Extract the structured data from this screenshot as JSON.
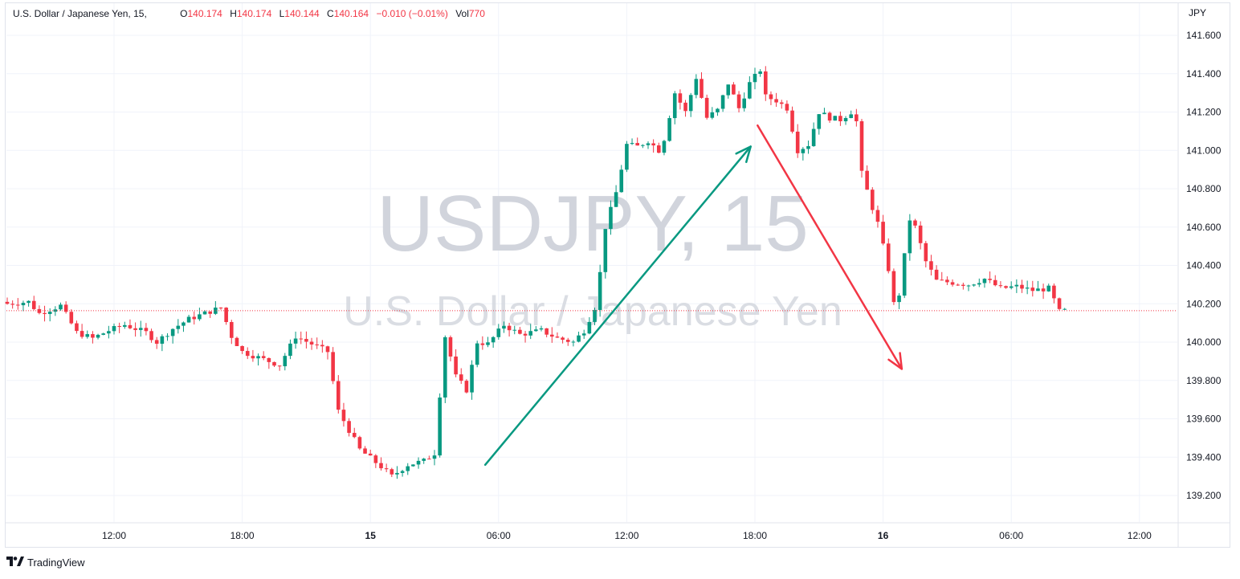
{
  "legend": {
    "symbol": "U.S. Dollar / Japanese Yen, 15,",
    "o_label": "O",
    "o_value": "140.174",
    "h_label": "H",
    "h_value": "140.174",
    "l_label": "L",
    "l_value": "140.144",
    "c_label": "C",
    "c_value": "140.164",
    "change": "−0.010 (−0.01%)",
    "vol_label": "Vol",
    "vol_value": "770"
  },
  "watermark": {
    "symbol": "USDJPY, 15",
    "name": "U.S. Dollar / Japanese Yen"
  },
  "branding": {
    "logo_icon": "tradingview-logo-icon",
    "name": "TradingView"
  },
  "colors": {
    "up": "#089981",
    "down": "#f23645",
    "grid": "#f0f3fa",
    "axis_text": "#131722",
    "last_price_line": "#f23645",
    "arrow_up": "#089981",
    "arrow_down": "#f23645",
    "watermark": "#d1d4dc"
  },
  "chart_data": {
    "type": "candlestick",
    "currency": "JPY",
    "last_price": 140.164,
    "ylim": [
      139.1,
      141.67
    ],
    "xlim": [
      0,
      198
    ],
    "y_ticks": [
      {
        "value": 141.6,
        "label": "141.600"
      },
      {
        "value": 141.4,
        "label": "141.400"
      },
      {
        "value": 141.2,
        "label": "141.200"
      },
      {
        "value": 141.0,
        "label": "141.000"
      },
      {
        "value": 140.8,
        "label": "140.800"
      },
      {
        "value": 140.6,
        "label": "140.600"
      },
      {
        "value": 140.4,
        "label": "140.400"
      },
      {
        "value": 140.2,
        "label": "140.200"
      },
      {
        "value": 140.0,
        "label": "140.000"
      },
      {
        "value": 139.8,
        "label": "139.800"
      },
      {
        "value": 139.6,
        "label": "139.600"
      },
      {
        "value": 139.4,
        "label": "139.400"
      },
      {
        "value": 139.2,
        "label": "139.200"
      }
    ],
    "x_ticks": [
      {
        "index": 20,
        "label": "12:00",
        "bold": false
      },
      {
        "index": 44,
        "label": "18:00",
        "bold": false
      },
      {
        "index": 68,
        "label": "15",
        "bold": true
      },
      {
        "index": 92,
        "label": "06:00",
        "bold": false
      },
      {
        "index": 116,
        "label": "12:00",
        "bold": false
      },
      {
        "index": 140,
        "label": "18:00",
        "bold": false
      },
      {
        "index": 164,
        "label": "16",
        "bold": true
      },
      {
        "index": 188,
        "label": "06:00",
        "bold": false
      },
      {
        "index": 212,
        "label": "12:00",
        "bold": false
      }
    ],
    "anchors": [
      [
        0,
        140.2
      ],
      [
        4,
        140.21
      ],
      [
        6,
        140.15
      ],
      [
        10,
        140.19
      ],
      [
        13,
        140.05
      ],
      [
        16,
        140.02
      ],
      [
        19,
        140.06
      ],
      [
        22,
        140.09
      ],
      [
        26,
        140.05
      ],
      [
        28,
        140.0
      ],
      [
        31,
        140.07
      ],
      [
        34,
        140.12
      ],
      [
        38,
        140.16
      ],
      [
        40,
        140.18
      ],
      [
        42,
        140.03
      ],
      [
        44,
        139.95
      ],
      [
        47,
        139.92
      ],
      [
        51,
        139.88
      ],
      [
        54,
        140.03
      ],
      [
        57,
        139.99
      ],
      [
        60,
        139.95
      ],
      [
        62,
        139.64
      ],
      [
        66,
        139.44
      ],
      [
        70,
        139.35
      ],
      [
        72,
        139.3
      ],
      [
        75,
        139.36
      ],
      [
        78,
        139.38
      ],
      [
        80,
        139.42
      ],
      [
        82,
        140.03
      ],
      [
        84,
        139.82
      ],
      [
        86,
        139.75
      ],
      [
        88,
        140.0
      ],
      [
        90,
        139.99
      ],
      [
        93,
        140.09
      ],
      [
        96,
        140.04
      ],
      [
        100,
        140.06
      ],
      [
        103,
        140.02
      ],
      [
        106,
        140.0
      ],
      [
        108,
        140.06
      ],
      [
        110,
        140.18
      ],
      [
        111,
        140.36
      ],
      [
        112,
        140.6
      ],
      [
        114,
        140.78
      ],
      [
        116,
        141.03
      ],
      [
        118,
        141.02
      ],
      [
        120,
        141.05
      ],
      [
        122,
        141.0
      ],
      [
        123,
        141.06
      ],
      [
        125,
        141.3
      ],
      [
        127,
        141.2
      ],
      [
        129,
        141.38
      ],
      [
        131,
        141.17
      ],
      [
        133,
        141.21
      ],
      [
        135,
        141.35
      ],
      [
        137,
        141.22
      ],
      [
        139,
        141.35
      ],
      [
        141,
        141.42
      ],
      [
        142,
        141.28
      ],
      [
        144,
        141.26
      ],
      [
        146,
        141.22
      ],
      [
        148,
        141.0
      ],
      [
        150,
        141.03
      ],
      [
        152,
        141.2
      ],
      [
        154,
        141.17
      ],
      [
        156,
        141.16
      ],
      [
        158,
        141.2
      ],
      [
        159,
        141.15
      ],
      [
        160,
        140.88
      ],
      [
        162,
        140.7
      ],
      [
        163,
        140.62
      ],
      [
        165,
        140.38
      ],
      [
        166,
        140.2
      ],
      [
        167,
        140.25
      ],
      [
        168,
        140.45
      ],
      [
        169,
        140.64
      ],
      [
        170,
        140.6
      ],
      [
        172,
        140.42
      ],
      [
        174,
        140.32
      ],
      [
        177,
        140.31
      ],
      [
        180,
        140.3
      ],
      [
        183,
        140.33
      ],
      [
        186,
        140.28
      ],
      [
        189,
        140.29
      ],
      [
        192,
        140.27
      ],
      [
        195,
        140.28
      ],
      [
        196,
        140.22
      ],
      [
        197,
        140.16
      ],
      [
        198,
        140.164
      ]
    ],
    "annotations": [
      {
        "type": "arrow",
        "color": "up",
        "from": [
          89.5,
          139.36
        ],
        "to": [
          139.2,
          141.02
        ]
      },
      {
        "type": "arrow",
        "color": "down",
        "from": [
          140.5,
          141.13
        ],
        "to": [
          167.5,
          139.86
        ]
      }
    ]
  }
}
